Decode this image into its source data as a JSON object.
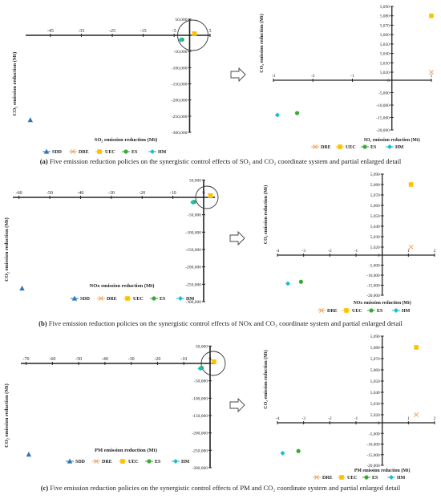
{
  "colors": {
    "SDD": "#2e75b6",
    "DRE": "#f4a460",
    "UEC": "#ffc000",
    "ES": "#3aaa35",
    "HM": "#17becf",
    "axis": "#222222",
    "circle": "#333333"
  },
  "arrow_icon": "right-arrow-icon",
  "chart_data": [
    {
      "type": "scatter",
      "panel": "a",
      "view": "full",
      "xlabel": "SO₂ emission reduction (Mt)",
      "ylabel": "CO₂ emission reduction (Mt)",
      "xlim": [
        -53,
        5
      ],
      "ylim": [
        -300000,
        50000
      ],
      "xticks": [
        -45,
        -35,
        -25,
        -15,
        -5,
        5
      ],
      "xtick_labels": [
        "-45",
        "-35",
        "-25",
        "-15",
        "-5",
        "5"
      ],
      "yticks": [
        50000,
        0,
        -50000,
        -100000,
        -150000,
        -200000,
        -250000,
        -300000
      ],
      "ytick_labels": [
        "50,000",
        "0",
        "-50,000",
        "-100,000",
        "-150,000",
        "-200,000",
        "-250,000",
        "-300,000"
      ],
      "series": [
        {
          "name": "SDD",
          "marker": "triangle",
          "x": [
            -51.5
          ],
          "y": [
            -262000
          ]
        },
        {
          "name": "DRE",
          "marker": "x",
          "x": [
            1.0
          ],
          "y": [
            5020
          ]
        },
        {
          "name": "UEC",
          "marker": "square",
          "x": [
            1.0
          ],
          "y": [
            5080
          ]
        },
        {
          "name": "ES",
          "marker": "circle",
          "x": [
            -2.4
          ],
          "y": [
            -13200
          ]
        },
        {
          "name": "HM",
          "marker": "diamond",
          "x": [
            -2.9
          ],
          "y": [
            -14000
          ]
        }
      ],
      "circle_highlight": {
        "x": 0,
        "y": 0
      }
    },
    {
      "type": "scatter",
      "panel": "a",
      "view": "detail",
      "xlabel": "SO₂ emission reduction (Mt)",
      "ylabel": "CO₂ emission reduction (Mt)",
      "xlim": [
        -3,
        1
      ],
      "xticks": [
        -3,
        -2,
        -1,
        0,
        1
      ],
      "xtick_labels": [
        "-3",
        "-2",
        "-1",
        "0",
        "1"
      ],
      "ytick_labels": [
        "5,090",
        "5,080",
        "5,070",
        "5,060",
        "5,050",
        "5,040",
        "5,030",
        "5,020",
        "0",
        "-5,000",
        "-10,000",
        "-15,000",
        "-20,000"
      ],
      "series": [
        {
          "name": "DRE",
          "marker": "x",
          "x": [
            1.0
          ],
          "y": [
            5020
          ]
        },
        {
          "name": "UEC",
          "marker": "square",
          "x": [
            1.0
          ],
          "y": [
            5080
          ]
        },
        {
          "name": "ES",
          "marker": "circle",
          "x": [
            -2.4
          ],
          "y": [
            -13200
          ]
        },
        {
          "name": "HM",
          "marker": "diamond",
          "x": [
            -2.9
          ],
          "y": [
            -14000
          ]
        }
      ]
    },
    {
      "type": "scatter",
      "panel": "b",
      "view": "full",
      "xlabel": "NOx emission reduction (Mt)",
      "ylabel": "CO₂ emission reduction (Mt)",
      "xlim": [
        -62,
        2
      ],
      "ylim": [
        -300000,
        50000
      ],
      "xticks": [
        -60,
        -50,
        -40,
        -30,
        -20,
        -10,
        0
      ],
      "xtick_labels": [
        "-60",
        "-50",
        "-40",
        "-30",
        "-20",
        "-10",
        "0"
      ],
      "yticks": [
        50000,
        0,
        -50000,
        -100000,
        -150000,
        -200000,
        -250000,
        -300000
      ],
      "ytick_labels": [
        "50,000",
        "0",
        "-50,000",
        "-100,000",
        "-150,000",
        "-200,000",
        "-250,000",
        "-300,000"
      ],
      "series": [
        {
          "name": "SDD",
          "marker": "triangle",
          "x": [
            -59
          ],
          "y": [
            -262000
          ]
        },
        {
          "name": "DRE",
          "marker": "x",
          "x": [
            1.1
          ],
          "y": [
            5020
          ]
        },
        {
          "name": "UEC",
          "marker": "square",
          "x": [
            1.1
          ],
          "y": [
            5080
          ]
        },
        {
          "name": "ES",
          "marker": "circle",
          "x": [
            -3.1
          ],
          "y": [
            -13300
          ]
        },
        {
          "name": "HM",
          "marker": "diamond",
          "x": [
            -3.6
          ],
          "y": [
            -14200
          ]
        }
      ],
      "circle_highlight": {
        "x": 0,
        "y": 0
      }
    },
    {
      "type": "scatter",
      "panel": "b",
      "view": "detail",
      "xlabel": "NOx emission reduction (Mt)",
      "ylabel": "CO₂ emission reduction (Mt)",
      "xlim": [
        -4,
        2
      ],
      "xticks": [
        -4,
        -3,
        -2,
        -1,
        0,
        1,
        2
      ],
      "xtick_labels": [
        "-4",
        "-3",
        "-2",
        "-1",
        "0",
        "1",
        "2"
      ],
      "ytick_labels": [
        "5,090",
        "5,080",
        "5,070",
        "5,060",
        "5,050",
        "5,040",
        "5,030",
        "5,020",
        "0",
        "-5,000",
        "-10,000",
        "-15,000",
        "-20,000"
      ],
      "series": [
        {
          "name": "DRE",
          "marker": "x",
          "x": [
            1.1
          ],
          "y": [
            5020
          ]
        },
        {
          "name": "UEC",
          "marker": "square",
          "x": [
            1.1
          ],
          "y": [
            5080
          ]
        },
        {
          "name": "ES",
          "marker": "circle",
          "x": [
            -3.1
          ],
          "y": [
            -13300
          ]
        },
        {
          "name": "HM",
          "marker": "diamond",
          "x": [
            -3.6
          ],
          "y": [
            -14200
          ]
        }
      ]
    },
    {
      "type": "scatter",
      "panel": "c",
      "view": "full",
      "xlabel": "PM emission reduction (Mt)",
      "ylabel": "CO₂ emission reduction (Mt)",
      "xlim": [
        -72,
        2
      ],
      "ylim": [
        -300000,
        50000
      ],
      "xticks": [
        -70,
        -60,
        -50,
        -40,
        -30,
        -20,
        -10,
        0
      ],
      "xtick_labels": [
        "-70",
        "-60",
        "-50",
        "-40",
        "-30",
        "-20",
        "-10",
        "0"
      ],
      "yticks": [
        50000,
        0,
        -50000,
        -100000,
        -150000,
        -200000,
        -250000,
        -300000
      ],
      "ytick_labels": [
        "50,000",
        "0",
        "-50,000",
        "-100,000",
        "-150,000",
        "-200,000",
        "-250,000",
        "-300,000"
      ],
      "series": [
        {
          "name": "SDD",
          "marker": "triangle",
          "x": [
            -69
          ],
          "y": [
            -262000
          ]
        },
        {
          "name": "DRE",
          "marker": "x",
          "x": [
            1.3
          ],
          "y": [
            5020
          ]
        },
        {
          "name": "UEC",
          "marker": "square",
          "x": [
            1.3
          ],
          "y": [
            5080
          ]
        },
        {
          "name": "ES",
          "marker": "circle",
          "x": [
            -3.2
          ],
          "y": [
            -13300
          ]
        },
        {
          "name": "HM",
          "marker": "diamond",
          "x": [
            -3.8
          ],
          "y": [
            -14300
          ]
        }
      ],
      "circle_highlight": {
        "x": 0,
        "y": 0
      }
    },
    {
      "type": "scatter",
      "panel": "c",
      "view": "detail",
      "xlabel": "PM emission reduction (Mt)",
      "ylabel": "CO₂ emission reduction (Mt)",
      "xlim": [
        -4,
        2
      ],
      "xticks": [
        -4,
        -3,
        -2,
        -1,
        0,
        1,
        2
      ],
      "xtick_labels": [
        "-4",
        "-3",
        "-2",
        "-1",
        "0",
        "1",
        "2"
      ],
      "ytick_labels": [
        "5,090",
        "5,080",
        "5,070",
        "5,060",
        "5,050",
        "5,040",
        "5,030",
        "5,020",
        "0",
        "-5,000",
        "-10,000",
        "-15,000",
        "-20,000"
      ],
      "series": [
        {
          "name": "DRE",
          "marker": "x",
          "x": [
            1.3
          ],
          "y": [
            5020
          ]
        },
        {
          "name": "UEC",
          "marker": "square",
          "x": [
            1.3
          ],
          "y": [
            5080
          ]
        },
        {
          "name": "ES",
          "marker": "circle",
          "x": [
            -3.2
          ],
          "y": [
            -13300
          ]
        },
        {
          "name": "HM",
          "marker": "diamond",
          "x": [
            -3.8
          ],
          "y": [
            -14300
          ]
        }
      ]
    }
  ],
  "captions": [
    {
      "label": "(a)",
      "text": " Five emission reduction policies on the synergistic control effects of SO₂ and CO₂ coordinate system and partial enlarged detail"
    },
    {
      "label": "(b)",
      "text": " Five emission reduction policies on the synergistic control effects of NOx and CO₂ coordinate system and partial enlarged detail"
    },
    {
      "label": "(c)",
      "text": " Five emission reduction policies on the synergistic control effects of PM and CO₂ coordinate system and partial enlarged detail"
    }
  ]
}
